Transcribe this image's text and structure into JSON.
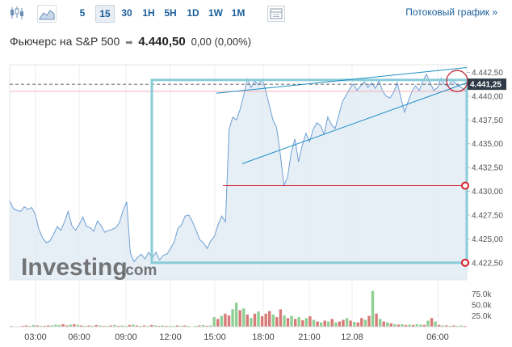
{
  "toolbar": {
    "intervals": [
      {
        "label": "5",
        "active": false
      },
      {
        "label": "15",
        "active": true
      },
      {
        "label": "30",
        "active": false
      },
      {
        "label": "1H",
        "active": false
      },
      {
        "label": "5H",
        "active": false
      },
      {
        "label": "1D",
        "active": false
      },
      {
        "label": "1W",
        "active": false
      },
      {
        "label": "1M",
        "active": false
      }
    ],
    "stream_link": "Потоковый график »",
    "icons": [
      "candlestick-icon",
      "area-chart-icon",
      "table-view-icon"
    ]
  },
  "instrument": {
    "name": "Фьючерс на S&P 500",
    "price": "4.440,50",
    "change": "0,00 (0,00%)"
  },
  "colors": {
    "line": "#6f9fd3",
    "fill": "#dde8f3",
    "accent": "#1b5e9b",
    "rect": "#89ccd8",
    "trend": "#1e8fc6",
    "hline": "#d51f2b",
    "vol_up": "#8fcf94",
    "vol_down": "#d77a78"
  },
  "chart_data": {
    "type": "area",
    "x_labels": [
      "03:00",
      "06:00",
      "09:00",
      "12:00",
      "15:00",
      "18:00",
      "21:00",
      "12.08",
      "06:00"
    ],
    "y_ticks": [
      "4.442,50",
      "4.440,00",
      "4.437,50",
      "4.435,00",
      "4.432,50",
      "4.430,00",
      "4.427,50",
      "4.425,00",
      "4.422,50"
    ],
    "ylim": [
      4420.7,
      4443.3
    ],
    "current_price_label": "4.441,25",
    "current_price": 4441.25,
    "horizontal_level": 4430.6,
    "watermark": "Investing",
    "watermark_suffix": ".com",
    "price_series": [
      4429.0,
      4428.2,
      4428.0,
      4427.9,
      4428.4,
      4428.1,
      4428.3,
      4427.6,
      4426.0,
      4425.1,
      4424.6,
      4424.8,
      4425.5,
      4426.3,
      4425.9,
      4426.8,
      4427.9,
      4426.4,
      4425.9,
      4426.5,
      4427.3,
      4426.3,
      4426.2,
      4425.8,
      4426.9,
      4426.4,
      4425.7,
      4425.9,
      4426.0,
      4426.2,
      4426.7,
      4428.0,
      4428.9,
      4423.5,
      4422.6,
      4423.1,
      4423.4,
      4422.9,
      4423.6,
      4423.0,
      4423.6,
      4422.8,
      4423.3,
      4423.4,
      4424.0,
      4424.7,
      4426.1,
      4426.5,
      4427.4,
      4427.5,
      4426.8,
      4425.9,
      4424.9,
      4424.6,
      4424.0,
      4424.8,
      4425.3,
      4426.5,
      4427.4,
      4426.8,
      4436.5,
      4437.8,
      4437.5,
      4438.6,
      4440.1,
      4441.8,
      4440.9,
      4441.6,
      4441.2,
      4441.8,
      4440.6,
      4439.0,
      4437.5,
      4436.7,
      4433.9,
      4430.6,
      4431.5,
      4434.1,
      4435.5,
      4433.1,
      4434.8,
      4436.1,
      4435.2,
      4436.5,
      4437.2,
      4436.9,
      4436.0,
      4437.8,
      4437.0,
      4436.6,
      4438.0,
      4439.4,
      4440.1,
      4440.8,
      4441.3,
      4440.6,
      4441.1,
      4441.5,
      4440.9,
      4441.4,
      4440.8,
      4441.6,
      4440.5,
      4440.0,
      4439.8,
      4440.4,
      4441.4,
      4439.8,
      4438.3,
      4439.5,
      4440.5,
      4441.1,
      4440.6,
      4441.6,
      4442.3,
      4441.4,
      4440.6,
      4440.9,
      4441.9,
      4441.2,
      4441.1,
      4441.7,
      4441.3,
      4441.0,
      4440.8,
      4440.5
    ],
    "volume_series": [
      0,
      0,
      0,
      0,
      0,
      0,
      0,
      0,
      0,
      0,
      0,
      0,
      0,
      0,
      0,
      0,
      0,
      0,
      0,
      0,
      0,
      0,
      0,
      0,
      0,
      0,
      0,
      0,
      0,
      0,
      0,
      0,
      0,
      0,
      0,
      0,
      0,
      0,
      0,
      0,
      0,
      0,
      0,
      0,
      0,
      0,
      0,
      0,
      0,
      0,
      0,
      0,
      0,
      0,
      0,
      0,
      0,
      0,
      0,
      0,
      0,
      0,
      0,
      0,
      0,
      0,
      0,
      0,
      0,
      0,
      0,
      0,
      0,
      0,
      0,
      0,
      0,
      0,
      0,
      0,
      0,
      0,
      0,
      0,
      0,
      0,
      0,
      0,
      0,
      0,
      0,
      0,
      0,
      0,
      0,
      0,
      0,
      0,
      0,
      0,
      0,
      0,
      0,
      0,
      0,
      0,
      0,
      0,
      0,
      0,
      0,
      0,
      0,
      0,
      0,
      0,
      0,
      0,
      0,
      0,
      0,
      0,
      0,
      0,
      0,
      0,
      0,
      0,
      0,
      0,
      0,
      0,
      0,
      0
    ],
    "volume": [
      {
        "v": 2,
        "up": true
      },
      {
        "v": 1,
        "up": true
      },
      {
        "v": 1,
        "up": true
      },
      {
        "v": 2,
        "up": false
      },
      {
        "v": 3,
        "up": false
      },
      {
        "v": 2,
        "up": true
      },
      {
        "v": 4,
        "up": true
      },
      {
        "v": 3,
        "up": false
      },
      {
        "v": 2,
        "up": true
      },
      {
        "v": 2,
        "up": false
      },
      {
        "v": 3,
        "up": false
      },
      {
        "v": 3,
        "up": true
      },
      {
        "v": 5,
        "up": true
      },
      {
        "v": 4,
        "up": true
      },
      {
        "v": 6,
        "up": false
      },
      {
        "v": 3,
        "up": false
      },
      {
        "v": 5,
        "up": true
      },
      {
        "v": 6,
        "up": false
      },
      {
        "v": 4,
        "up": true
      },
      {
        "v": 3,
        "up": false
      },
      {
        "v": 2,
        "up": true
      },
      {
        "v": 3,
        "up": false
      },
      {
        "v": 2,
        "up": true
      },
      {
        "v": 4,
        "up": false
      },
      {
        "v": 3,
        "up": true
      },
      {
        "v": 2,
        "up": false
      },
      {
        "v": 2,
        "up": true
      },
      {
        "v": 3,
        "up": false
      },
      {
        "v": 4,
        "up": true
      },
      {
        "v": 2,
        "up": false
      },
      {
        "v": 3,
        "up": true
      },
      {
        "v": 2,
        "up": true
      },
      {
        "v": 4,
        "up": false
      },
      {
        "v": 5,
        "up": true
      },
      {
        "v": 3,
        "up": false
      },
      {
        "v": 2,
        "up": true
      },
      {
        "v": 3,
        "up": false
      },
      {
        "v": 2,
        "up": true
      },
      {
        "v": 4,
        "up": false
      },
      {
        "v": 3,
        "up": true
      },
      {
        "v": 2,
        "up": false
      },
      {
        "v": 3,
        "up": true
      },
      {
        "v": 2,
        "up": false
      },
      {
        "v": 2,
        "up": true
      },
      {
        "v": 2,
        "up": true
      },
      {
        "v": 3,
        "up": false
      },
      {
        "v": 2,
        "up": true
      },
      {
        "v": 3,
        "up": false
      },
      {
        "v": 2,
        "up": true
      },
      {
        "v": 1,
        "up": false
      },
      {
        "v": 2,
        "up": true
      },
      {
        "v": 3,
        "up": false
      },
      {
        "v": 4,
        "up": true
      },
      {
        "v": 2,
        "up": false
      },
      {
        "v": 3,
        "up": true
      },
      {
        "v": 22,
        "up": true
      },
      {
        "v": 18,
        "up": false
      },
      {
        "v": 25,
        "up": true
      },
      {
        "v": 30,
        "up": false
      },
      {
        "v": 26,
        "up": false
      },
      {
        "v": 40,
        "up": true
      },
      {
        "v": 55,
        "up": true
      },
      {
        "v": 38,
        "up": false
      },
      {
        "v": 42,
        "up": true
      },
      {
        "v": 28,
        "up": false
      },
      {
        "v": 20,
        "up": true
      },
      {
        "v": 30,
        "up": false
      },
      {
        "v": 35,
        "up": true
      },
      {
        "v": 24,
        "up": false
      },
      {
        "v": 30,
        "up": false
      },
      {
        "v": 36,
        "up": false
      },
      {
        "v": 28,
        "up": true
      },
      {
        "v": 22,
        "up": false
      },
      {
        "v": 40,
        "up": false
      },
      {
        "v": 26,
        "up": true
      },
      {
        "v": 20,
        "up": false
      },
      {
        "v": 25,
        "up": true
      },
      {
        "v": 18,
        "up": false
      },
      {
        "v": 22,
        "up": true
      },
      {
        "v": 15,
        "up": false
      },
      {
        "v": 20,
        "up": true
      },
      {
        "v": 24,
        "up": false
      },
      {
        "v": 16,
        "up": true
      },
      {
        "v": 12,
        "up": false
      },
      {
        "v": 10,
        "up": true
      },
      {
        "v": 14,
        "up": false
      },
      {
        "v": 12,
        "up": true
      },
      {
        "v": 18,
        "up": false
      },
      {
        "v": 10,
        "up": true
      },
      {
        "v": 12,
        "up": false
      },
      {
        "v": 16,
        "up": false
      },
      {
        "v": 20,
        "up": true
      },
      {
        "v": 14,
        "up": false
      },
      {
        "v": 11,
        "up": true
      },
      {
        "v": 10,
        "up": false
      },
      {
        "v": 20,
        "up": false
      },
      {
        "v": 16,
        "up": true
      },
      {
        "v": 25,
        "up": false
      },
      {
        "v": 82,
        "up": true
      },
      {
        "v": 30,
        "up": false
      },
      {
        "v": 18,
        "up": true
      },
      {
        "v": 12,
        "up": false
      },
      {
        "v": 10,
        "up": true
      },
      {
        "v": 8,
        "up": false
      },
      {
        "v": 6,
        "up": true
      },
      {
        "v": 5,
        "up": false
      },
      {
        "v": 6,
        "up": true
      },
      {
        "v": 4,
        "up": false
      },
      {
        "v": 5,
        "up": true
      },
      {
        "v": 4,
        "up": false
      },
      {
        "v": 6,
        "up": true
      },
      {
        "v": 5,
        "up": true
      },
      {
        "v": 4,
        "up": false
      },
      {
        "v": 14,
        "up": true
      },
      {
        "v": 20,
        "up": false
      },
      {
        "v": 12,
        "up": true
      },
      {
        "v": 4,
        "up": false
      },
      {
        "v": 3,
        "up": true
      },
      {
        "v": 3,
        "up": false
      },
      {
        "v": 2,
        "up": true
      },
      {
        "v": 3,
        "up": false
      },
      {
        "v": 2,
        "up": true
      },
      {
        "v": 3,
        "up": true
      },
      {
        "v": 2,
        "up": false
      }
    ],
    "volume_ticks": [
      "75.0k",
      "50.0k",
      "25.0k"
    ],
    "volume_tick_values": [
      75,
      50,
      25
    ],
    "vlim": [
      0,
      100
    ]
  }
}
